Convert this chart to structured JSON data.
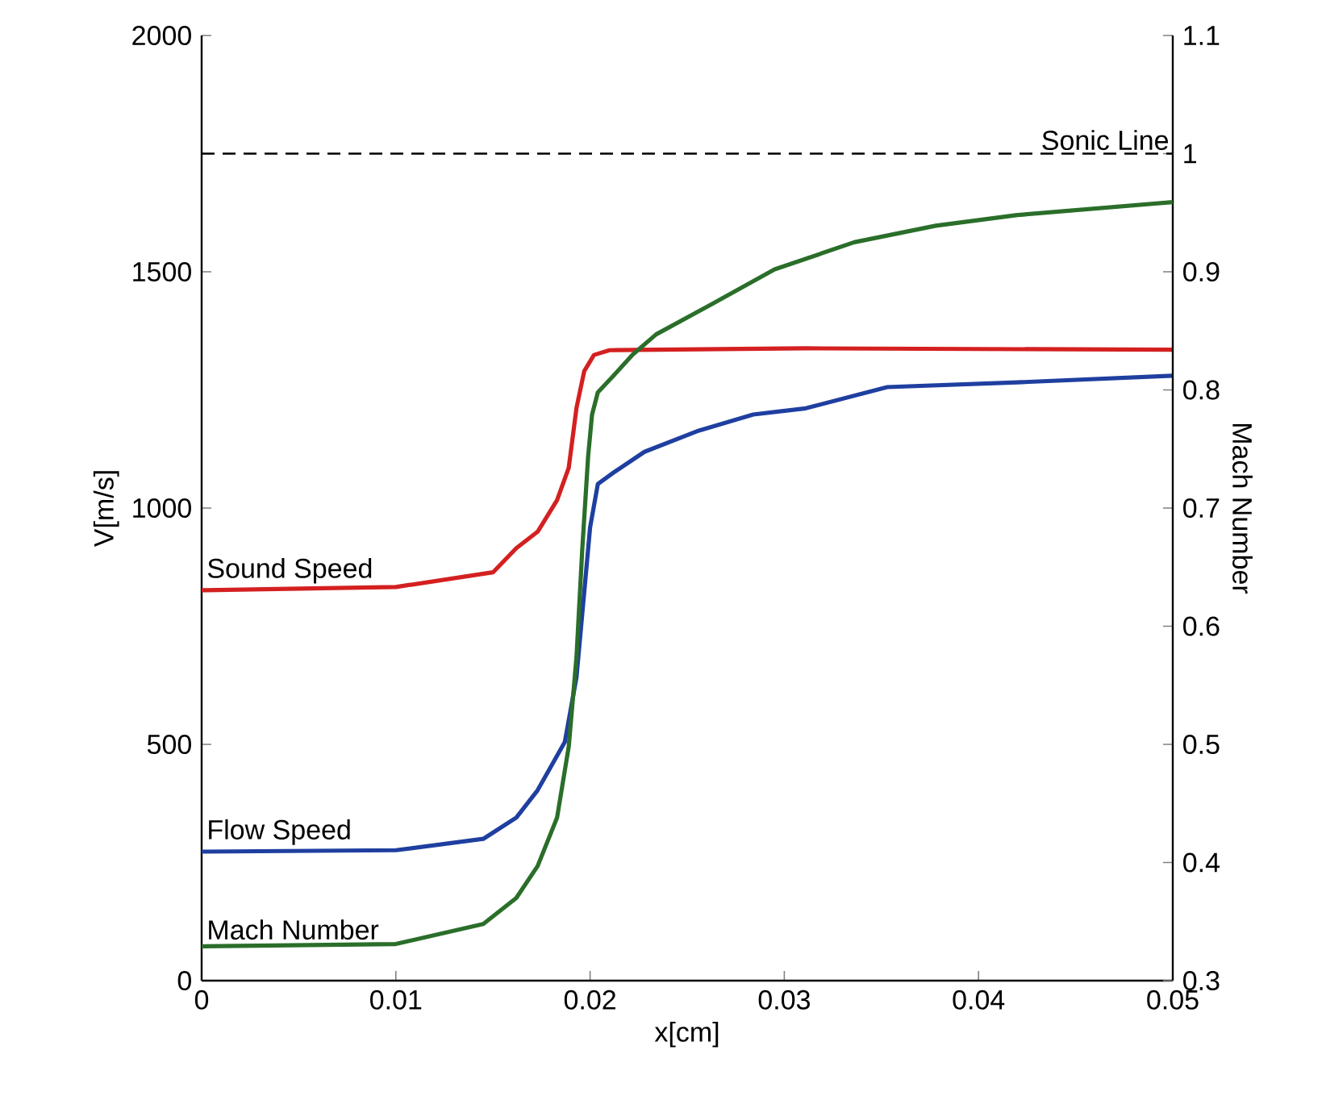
{
  "chart_data": {
    "type": "line",
    "xlabel": "x[cm]",
    "ylabel": "V[m/s]",
    "y2label": "Mach Number",
    "legend": false,
    "xlim": [
      0,
      0.05
    ],
    "xticks": [
      0,
      0.01,
      0.02,
      0.03,
      0.04,
      0.05
    ],
    "ylim": [
      0,
      2000
    ],
    "yticks": [
      0,
      500,
      1000,
      1500,
      2000
    ],
    "y2lim": [
      0.3,
      1.1
    ],
    "y2ticks": [
      0.3,
      0.4,
      0.5,
      0.6,
      0.7,
      0.8,
      0.9,
      1,
      1.1
    ],
    "ref_lines": [
      {
        "axis": "y2",
        "value": 1,
        "label": "Sonic Line",
        "line_style": "dashed",
        "color": "#000000"
      }
    ],
    "series": [
      {
        "name": "Sound Speed",
        "color": "#d42020",
        "x": [
          0,
          0.01,
          0.015,
          0.0162,
          0.0173,
          0.0183,
          0.0189,
          0.0193,
          0.0197,
          0.0202,
          0.021,
          0.0311,
          0.05
        ],
        "values": [
          826,
          833,
          864,
          915,
          950,
          1017,
          1085,
          1212,
          1290,
          1324,
          1334,
          1338,
          1335
        ]
      },
      {
        "name": "Flow Speed",
        "color": "#1f3fa0",
        "x": [
          0,
          0.01,
          0.0145,
          0.0162,
          0.0173,
          0.0187,
          0.0193,
          0.0197,
          0.02,
          0.0204,
          0.0212,
          0.0228,
          0.0256,
          0.0284,
          0.0311,
          0.0353,
          0.042,
          0.05
        ],
        "values": [
          273,
          276,
          300,
          345,
          403,
          505,
          642,
          823,
          959,
          1051,
          1075,
          1119,
          1164,
          1198,
          1211,
          1256,
          1266,
          1280
        ]
      },
      {
        "name": "Mach Number",
        "color": "#2a6e2a",
        "axis": "y2",
        "x": [
          0,
          0.01,
          0.0145,
          0.0162,
          0.0173,
          0.0183,
          0.0189,
          0.0193,
          0.0196,
          0.0199,
          0.0201,
          0.0204,
          0.0212,
          0.0222,
          0.0234,
          0.0262,
          0.0295,
          0.0336,
          0.0378,
          0.042,
          0.05
        ],
        "values": [
          0.329,
          0.331,
          0.348,
          0.37,
          0.397,
          0.438,
          0.498,
          0.574,
          0.666,
          0.744,
          0.779,
          0.798,
          0.812,
          0.83,
          0.847,
          0.872,
          0.902,
          0.925,
          0.939,
          0.948,
          0.959
        ]
      }
    ]
  }
}
